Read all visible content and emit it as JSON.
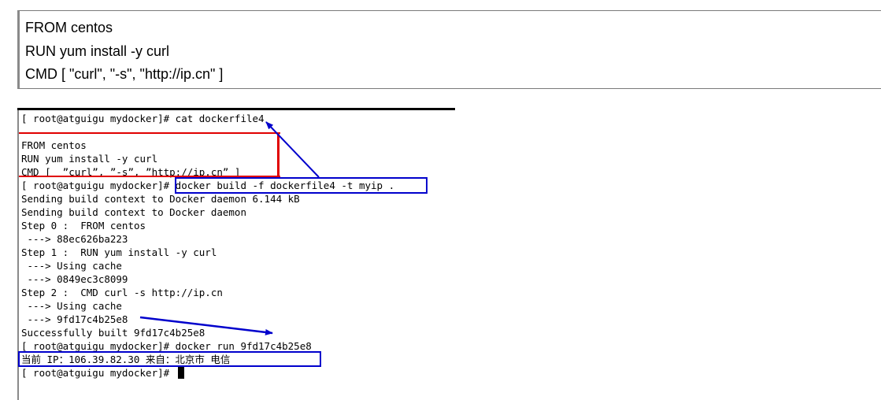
{
  "dockerfile_panel": {
    "lines": [
      "FROM centos",
      "RUN yum install -y curl",
      "CMD [ \"curl\", \"-s\", \"http://ip.cn\" ]"
    ]
  },
  "terminal": {
    "lines": [
      "[ root@atguigu mydocker]# cat dockerfile4",
      "",
      "FROM centos",
      "RUN yum install -y curl",
      "CMD [  ”curl”, ”-s”, ”http://ip.cn” ]",
      "[ root@atguigu mydocker]# docker build -f dockerfile4 -t myip .",
      "Sending build context to Docker daemon 6.144 kB",
      "Sending build context to Docker daemon",
      "Step 0 :  FROM centos",
      " ---> 88ec626ba223",
      "Step 1 :  RUN yum install -y curl",
      " ---> Using cache",
      " ---> 0849ec3c8099",
      "Step 2 :  CMD curl -s http://ip.cn",
      " ---> Using cache",
      " ---> 9fd17c4b25e8",
      "Successfully built 9fd17c4b25e8",
      "[ root@atguigu mydocker]# docker run 9fd17c4b25e8",
      "当前 IP：106.39.82.30 来自：北京市 电信",
      "[ root@atguigu mydocker]# "
    ]
  },
  "colors": {
    "highlight_red": "#e00000",
    "highlight_blue": "#0000cc"
  }
}
